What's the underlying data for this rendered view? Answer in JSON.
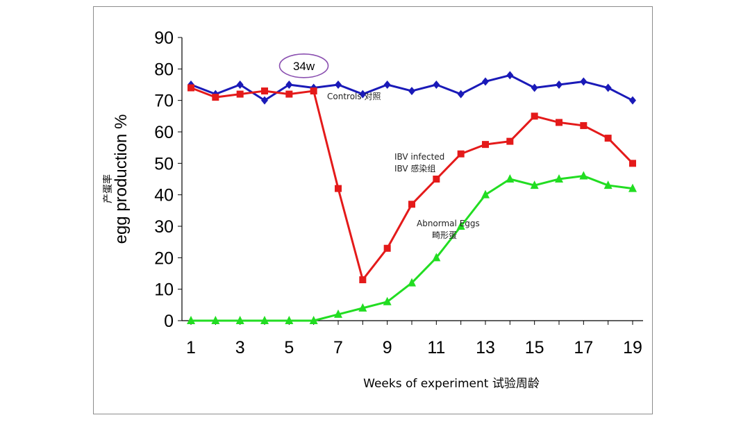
{
  "chart_data": {
    "type": "line",
    "title": "",
    "xlabel": "Weeks of experiment 试验周龄",
    "ylabel": "egg production %",
    "ylabel_cn": "产蛋率",
    "xlim": [
      1,
      19
    ],
    "ylim": [
      0,
      90
    ],
    "x": [
      1,
      2,
      3,
      4,
      5,
      6,
      7,
      8,
      9,
      10,
      11,
      12,
      13,
      14,
      15,
      16,
      17,
      18,
      19
    ],
    "x_ticks": [
      1,
      3,
      5,
      7,
      9,
      11,
      13,
      15,
      17,
      19
    ],
    "y_ticks": [
      0,
      10,
      20,
      30,
      40,
      50,
      60,
      70,
      80,
      90
    ],
    "series": [
      {
        "name": "Controls 对照",
        "label_lines": [
          "Controls 对照"
        ],
        "color": "#1a1ab8",
        "marker": "diamond",
        "values": [
          75,
          72,
          75,
          70,
          75,
          74,
          75,
          72,
          75,
          73,
          75,
          72,
          76,
          78,
          74,
          75,
          76,
          74,
          70
        ]
      },
      {
        "name": "IBV infected IBV 感染组",
        "label_lines": [
          "IBV infected",
          "IBV 感染组"
        ],
        "color": "#e41a1a",
        "marker": "square",
        "values": [
          74,
          71,
          72,
          73,
          72,
          73,
          42,
          13,
          23,
          37,
          45,
          53,
          56,
          57,
          65,
          63,
          62,
          58,
          50
        ]
      },
      {
        "name": "Abnormal Eggs 畸形蛋",
        "label_lines": [
          "Abnormal Eggs",
          "畸形蛋"
        ],
        "color": "#22dd22",
        "marker": "triangle",
        "values": [
          0,
          0,
          0,
          0,
          0,
          0,
          2,
          4,
          6,
          12,
          20,
          30,
          40,
          45,
          43,
          45,
          46,
          43,
          42
        ]
      }
    ],
    "annotations": [
      {
        "text": "34w",
        "x": 5.6,
        "y": 81,
        "style": "ellipse"
      }
    ]
  }
}
